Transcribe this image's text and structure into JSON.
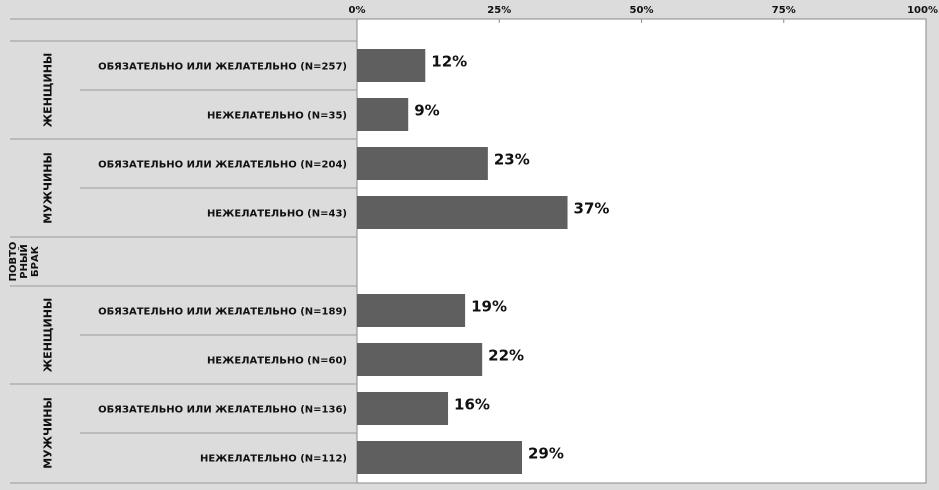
{
  "chart_data": {
    "type": "bar",
    "orientation": "horizontal",
    "x_ticks": [
      "0%",
      "25%",
      "50%",
      "75%",
      "100%"
    ],
    "xlim": [
      0,
      100
    ],
    "value_labels_shown": true,
    "grid": false,
    "section_label": "ПОВТО РНЫЙ БРАК",
    "groups": [
      {
        "label": "ЖЕНЩИНЫ",
        "rows": [
          {
            "label": "ОБЯЗАТЕЛЬНО ИЛИ ЖЕЛАТЕЛЬНО  (N=257)",
            "value": 12,
            "display": "12%"
          },
          {
            "label": "НЕЖЕЛАТЕЛЬНО (N=35)",
            "value": 9,
            "display": "9%"
          }
        ]
      },
      {
        "label": "МУЖЧИНЫ",
        "rows": [
          {
            "label": "ОБЯЗАТЕЛЬНО ИЛИ ЖЕЛАТЕЛЬНО (N=204)",
            "value": 23,
            "display": "23%"
          },
          {
            "label": "НЕЖЕЛАТЕЛЬНО (N=43)",
            "value": 37,
            "display": "37%"
          }
        ]
      },
      {
        "label": "ЖЕНЩИНЫ",
        "rows": [
          {
            "label": "ОБЯЗАТЕЛЬНО ИЛИ ЖЕЛАТЕЛЬНО (N=189)",
            "value": 19,
            "display": "19%"
          },
          {
            "label": "НЕЖЕЛАТЕЛЬНО (N=60)",
            "value": 22,
            "display": "22%"
          }
        ]
      },
      {
        "label": "МУЖЧИНЫ",
        "rows": [
          {
            "label": "ОБЯЗАТЕЛЬНО ИЛИ ЖЕЛАТЕЛЬНО (N=136)",
            "value": 16,
            "display": "16%"
          },
          {
            "label": "НЕЖЕЛАТЕЛЬНО (N=112)",
            "value": 29,
            "display": "29%"
          }
        ]
      }
    ],
    "colors": {
      "bar": "#5f5f5f",
      "plot_bg": "#ffffff",
      "label_bg": "#dcdcdc",
      "text": "#111111"
    }
  }
}
